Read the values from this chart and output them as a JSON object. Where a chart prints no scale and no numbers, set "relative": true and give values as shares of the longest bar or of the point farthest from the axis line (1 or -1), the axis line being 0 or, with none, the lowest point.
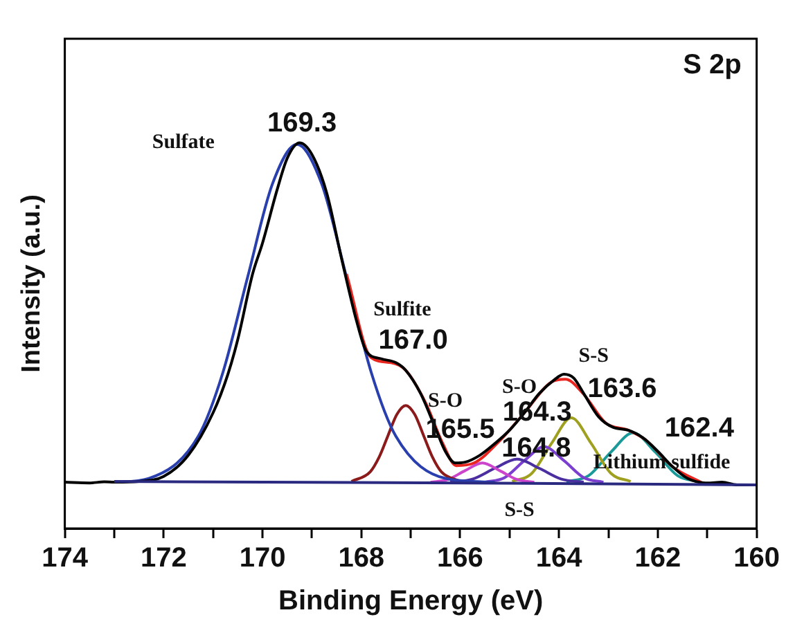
{
  "chart_data": {
    "type": "line",
    "relative": true,
    "xlabel": "Binding Energy (eV)",
    "ylabel": "Intensity (a.u.)",
    "xlim": [
      174,
      160
    ],
    "xticks": [
      174,
      {
        "value": 173,
        "label": null
      },
      172,
      {
        "value": 171,
        "label": null
      },
      170,
      {
        "value": 169,
        "label": null
      },
      168,
      {
        "value": 167,
        "label": null
      },
      166,
      {
        "value": 165,
        "label": null
      },
      164,
      {
        "value": 163,
        "label": null
      },
      162,
      {
        "value": 161,
        "label": null
      },
      160
    ],
    "grid": false,
    "legend": false,
    "marker": "none",
    "line_style": "solid",
    "series": [
      {
        "color": "#2a2a80",
        "x": [
          173,
          166,
          160
        ],
        "values": [
          0.122,
          0.118,
          0.113
        ]
      },
      {
        "color": "#000000",
        "x": [
          174,
          173.5,
          173.2,
          173,
          172.5,
          172,
          171.5,
          171,
          170.7,
          170.5,
          170.2,
          170,
          169.7,
          169.5,
          169.25,
          169,
          168.7,
          168.4,
          168.1,
          167.9,
          167.6,
          167.3,
          167.1,
          166.8,
          166.5,
          166.3,
          166.1,
          165.9,
          165.6,
          165.3,
          165,
          164.7,
          164.4,
          164.1,
          163.9,
          163.7,
          163.5,
          163.2,
          162.9,
          162.6,
          162.3,
          162,
          161.7,
          161.4,
          161,
          160.7,
          160.4,
          160
        ],
        "values": [
          0.12,
          0.118,
          0.121,
          0.12,
          0.122,
          0.135,
          0.19,
          0.3,
          0.4,
          0.49,
          0.66,
          0.74,
          0.88,
          0.96,
          1.0,
          0.97,
          0.87,
          0.7,
          0.54,
          0.46,
          0.44,
          0.43,
          0.41,
          0.35,
          0.26,
          0.2,
          0.17,
          0.172,
          0.19,
          0.22,
          0.255,
          0.3,
          0.35,
          0.385,
          0.4,
          0.39,
          0.35,
          0.29,
          0.262,
          0.255,
          0.235,
          0.2,
          0.16,
          0.13,
          0.118,
          0.12,
          0.113,
          0.113
        ]
      },
      {
        "color": "#e8251f",
        "x": [
          168.3,
          167.8,
          167.4,
          167.1,
          166.7,
          166.35,
          166.08,
          165.72,
          165.18,
          164.7,
          164.15,
          163.87,
          163.5,
          163.05,
          162.6,
          162.25,
          161.7,
          161.1
        ],
        "values": [
          0.66,
          0.443,
          0.43,
          0.41,
          0.326,
          0.22,
          0.163,
          0.17,
          0.23,
          0.3,
          0.38,
          0.387,
          0.348,
          0.273,
          0.255,
          0.23,
          0.16,
          0.118
        ]
      },
      {
        "color": "#2a3fae",
        "x": [
          173,
          172.3,
          171.3,
          170.8,
          170.3,
          169.8,
          169.3,
          168.8,
          168.3,
          167.8,
          167.3,
          166.3,
          165.3
        ],
        "values": [
          0.12,
          0.13,
          0.239,
          0.405,
          0.652,
          0.893,
          0.996,
          0.893,
          0.652,
          0.405,
          0.239,
          0.13,
          0.12
        ]
      },
      {
        "color": "#8b1a1a",
        "x": [
          168.2,
          167.82,
          167.64,
          167.46,
          167.28,
          167.1,
          166.92,
          166.74,
          166.56,
          166.38,
          166.0
        ],
        "values": [
          0.122,
          0.147,
          0.185,
          0.241,
          0.296,
          0.319,
          0.296,
          0.241,
          0.185,
          0.147,
          0.122
        ]
      },
      {
        "color": "#cc44cc",
        "x": [
          166.6,
          166.25,
          165.9,
          165.55,
          165.2,
          164.85,
          164.5
        ],
        "values": [
          0.12,
          0.127,
          0.15,
          0.17,
          0.15,
          0.127,
          0.12
        ]
      },
      {
        "color": "#4b2fa0",
        "x": [
          166.2,
          165.75,
          165.3,
          164.85,
          164.4,
          163.95,
          163.5
        ],
        "values": [
          0.12,
          0.128,
          0.156,
          0.18,
          0.156,
          0.128,
          0.12
        ]
      },
      {
        "color": "#7b3fd0",
        "x": [
          165.5,
          165.1,
          164.7,
          164.3,
          163.9,
          163.5,
          163.1
        ],
        "values": [
          0.12,
          0.132,
          0.176,
          0.212,
          0.176,
          0.132,
          0.12
        ]
      },
      {
        "color": "#a0a020",
        "x": [
          164.95,
          164.55,
          164.15,
          163.75,
          163.35,
          162.95,
          162.55
        ],
        "values": [
          0.122,
          0.143,
          0.221,
          0.287,
          0.221,
          0.143,
          0.122
        ]
      },
      {
        "color": "#1a9999",
        "x": [
          163.85,
          163.4,
          162.95,
          162.5,
          162.05,
          161.6,
          161.15
        ],
        "values": [
          0.121,
          0.137,
          0.198,
          0.248,
          0.198,
          0.137,
          0.121
        ]
      }
    ],
    "annotations": [
      "S 2p",
      "169.3",
      "Sulfate",
      "Sulfite",
      "167.0",
      "S-O",
      "165.5",
      "S-O",
      "164.3",
      "164.8",
      "S-S",
      "163.6",
      "162.4",
      "Lithium sulfide",
      "S-S"
    ]
  }
}
